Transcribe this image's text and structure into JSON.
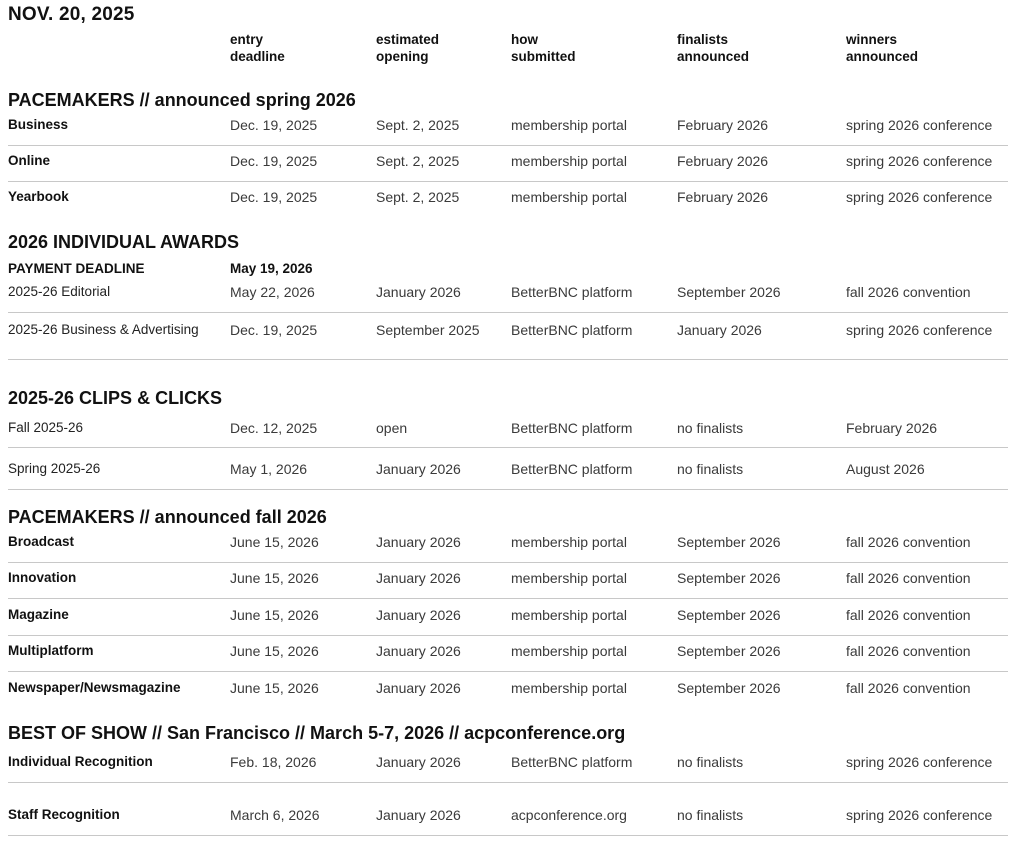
{
  "header": {
    "date": "NOV. 20, 2025"
  },
  "columns": [
    [
      "entry",
      "deadline"
    ],
    [
      "estimated",
      "opening"
    ],
    [
      "how",
      "submitted"
    ],
    [
      "finalists",
      "announced"
    ],
    [
      "winners",
      "announced"
    ]
  ],
  "sections": [
    {
      "title": "PACEMAKERS // announced spring 2026",
      "label_style": "bold",
      "rows": [
        [
          "Business",
          "Dec. 19, 2025",
          "Sept. 2, 2025",
          "membership portal",
          "February 2026",
          "spring 2026 conference"
        ],
        [
          "Online",
          "Dec. 19, 2025",
          "Sept. 2, 2025",
          "membership portal",
          "February 2026",
          "spring 2026 conference"
        ],
        [
          "Yearbook",
          "Dec. 19, 2025",
          "Sept. 2, 2025",
          "membership portal",
          "February 2026",
          "spring 2026 conference"
        ]
      ]
    },
    {
      "title": "2026 INDIVIDUAL AWARDS",
      "payment": {
        "label": "PAYMENT DEADLINE",
        "date": "May 19, 2026"
      },
      "label_style": "plain",
      "rows": [
        [
          "2025-26  Editorial",
          "May 22, 2026",
          "January 2026",
          "BetterBNC platform",
          "September 2026",
          "fall 2026 convention"
        ],
        [
          "2025-26 Business & Advertising",
          "Dec. 19, 2025",
          "September 2025",
          "BetterBNC platform",
          "January 2026",
          "spring 2026 conference"
        ]
      ]
    },
    {
      "title": "2025-26 CLIPS & CLICKS",
      "label_style": "plain",
      "rows": [
        [
          "Fall 2025-26",
          "Dec. 12, 2025",
          "open",
          "BetterBNC platform",
          "no finalists",
          "February 2026"
        ],
        [
          "Spring 2025-26",
          "May 1, 2026",
          "January 2026",
          "BetterBNC platform",
          "no finalists",
          "August 2026"
        ]
      ]
    },
    {
      "title": "PACEMAKERS // announced fall 2026",
      "label_style": "bold",
      "rows": [
        [
          "Broadcast",
          "June 15, 2026",
          "January 2026",
          "membership portal",
          "September 2026",
          "fall 2026 convention"
        ],
        [
          "Innovation",
          "June 15, 2026",
          "January 2026",
          "membership portal",
          "September 2026",
          "fall 2026 convention"
        ],
        [
          "Magazine",
          "June 15, 2026",
          "January 2026",
          "membership portal",
          "September 2026",
          "fall 2026 convention"
        ],
        [
          "Multiplatform",
          "June 15, 2026",
          "January 2026",
          "membership portal",
          "September 2026",
          "fall 2026 convention"
        ],
        [
          "Newspaper/Newsmagazine",
          "June 15, 2026",
          "January 2026",
          "membership portal",
          "September 2026",
          "fall 2026 convention"
        ]
      ]
    },
    {
      "title": "BEST OF SHOW // San Francisco // March 5-7, 2026 // acpconference.org",
      "label_style": "bold",
      "rows": [
        [
          "Individual Recognition",
          "Feb. 18, 2026",
          "January 2026",
          "BetterBNC platform",
          "no finalists",
          "spring 2026 conference"
        ],
        [
          "Staff Recognition",
          "March 6, 2026",
          "January 2026",
          "acpconference.org",
          "no finalists",
          "spring 2026 conference"
        ]
      ]
    }
  ]
}
